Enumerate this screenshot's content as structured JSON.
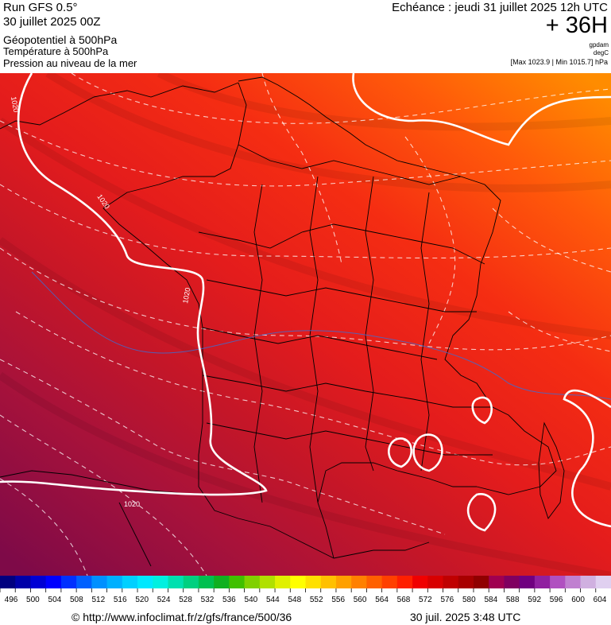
{
  "header": {
    "run_title": "Run GFS 0.5°",
    "run_date": "30 juillet 2025 00Z",
    "param_main": "Géopotentiel à 500hPa",
    "param_temp": "Température à 500hPa",
    "param_pressure": "Pression au niveau de la mer",
    "forecast_valid": "Echéance : jeudi 31 juillet 2025 12h UTC",
    "forecast_offset": "+ 36H",
    "unit_geopotential": "gpdam",
    "unit_temperature": "degC",
    "pressure_range": "[Max 1023.9 | Min 1015.7] hPa"
  },
  "map": {
    "isobar_labels": [
      "1020",
      "1020",
      "1020",
      "1020"
    ],
    "colors": {
      "isobar": "#ffffff",
      "border": "#000000",
      "fill_north_east": "#ff8c00",
      "fill_center": "#e41c1c",
      "fill_south_west": "#8a0a48"
    }
  },
  "legend": {
    "ticks": [
      "496",
      "500",
      "504",
      "508",
      "512",
      "516",
      "520",
      "524",
      "528",
      "532",
      "536",
      "540",
      "544",
      "548",
      "552",
      "556",
      "560",
      "564",
      "568",
      "572",
      "576",
      "580",
      "584",
      "588",
      "592",
      "596",
      "600",
      "604"
    ],
    "colors": [
      "#00007f",
      "#0000a8",
      "#0000d4",
      "#0000ff",
      "#0030ff",
      "#0060ff",
      "#0090ff",
      "#00b0ff",
      "#00d0ff",
      "#00e8ff",
      "#00f0e0",
      "#00e0b0",
      "#00d080",
      "#00c050",
      "#10b020",
      "#40c000",
      "#80d000",
      "#b0e000",
      "#e0f000",
      "#ffff00",
      "#ffe000",
      "#ffc000",
      "#ffa000",
      "#ff8000",
      "#ff6000",
      "#ff4000",
      "#ff2000",
      "#f00000",
      "#d80000",
      "#c00000",
      "#a80000",
      "#900000",
      "#a00050",
      "#800060",
      "#700080",
      "#9020a0",
      "#b050c0",
      "#c080d0",
      "#d0b0e0",
      "#e0d0f0"
    ]
  },
  "footer": {
    "source": "© http://www.infoclimat.fr/z/gfs/france/500/36",
    "generated": "30 juil. 2025  3:48 UTC"
  }
}
